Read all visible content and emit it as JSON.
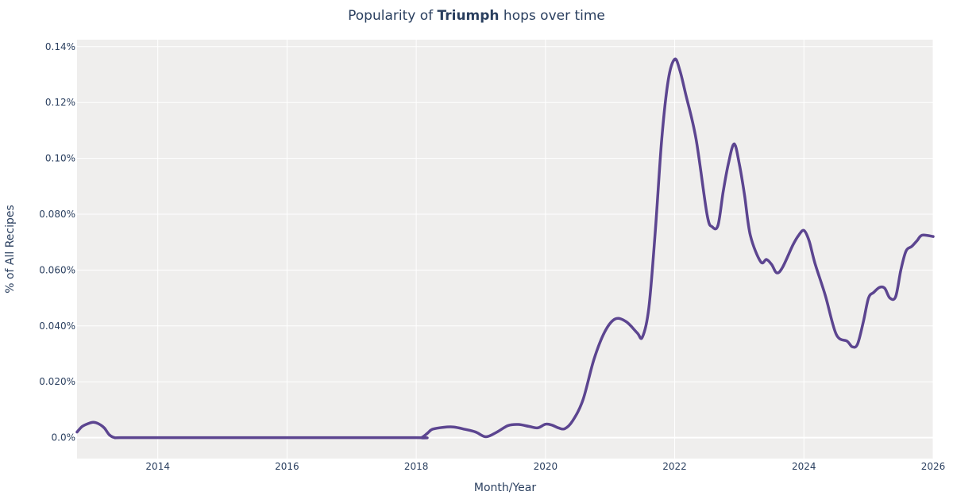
{
  "chart_data": {
    "type": "line",
    "title_prefix": "Popularity of ",
    "title_bold": "Triumph",
    "title_suffix": " hops over time",
    "xlabel": "Month/Year",
    "ylabel": "% of All Recipes",
    "xlim": [
      2012.75,
      2026.0
    ],
    "ylim": [
      -0.0075,
      0.1425
    ],
    "x_ticks": [
      2014,
      2016,
      2018,
      2020,
      2022,
      2024,
      2026
    ],
    "x_tick_labels": [
      "2014",
      "2016",
      "2018",
      "2020",
      "2022",
      "2024",
      "2026"
    ],
    "y_ticks": [
      0,
      0.02,
      0.04,
      0.06,
      0.08,
      0.1,
      0.12,
      0.14
    ],
    "y_tick_labels": [
      "0.0%",
      "0.020%",
      "0.040%",
      "0.060%",
      "0.080%",
      "0.10%",
      "0.12%",
      "0.14%"
    ],
    "grid": true,
    "series": [
      {
        "name": "Triumph",
        "color": "#5c4590",
        "points": [
          [
            2012.75,
            0.002
          ],
          [
            2012.83,
            0.004
          ],
          [
            2012.92,
            0.005
          ],
          [
            2013.0,
            0.0055
          ],
          [
            2013.08,
            0.005
          ],
          [
            2013.17,
            0.0035
          ],
          [
            2013.25,
            0.001
          ],
          [
            2013.33,
            0.0
          ],
          [
            2013.42,
            0.0
          ],
          [
            2014.0,
            0.0
          ],
          [
            2016.0,
            0.0
          ],
          [
            2018.0,
            0.0
          ],
          [
            2018.08,
            0.0
          ],
          [
            2018.17,
            0.0015
          ],
          [
            2018.25,
            0.003
          ],
          [
            2018.42,
            0.0037
          ],
          [
            2018.58,
            0.0038
          ],
          [
            2018.75,
            0.003
          ],
          [
            2018.92,
            0.002
          ],
          [
            2019.08,
            0.0003
          ],
          [
            2019.25,
            0.002
          ],
          [
            2019.42,
            0.0043
          ],
          [
            2019.58,
            0.0047
          ],
          [
            2019.75,
            0.004
          ],
          [
            2019.88,
            0.0035
          ],
          [
            2020.0,
            0.0048
          ],
          [
            2020.1,
            0.0045
          ],
          [
            2020.2,
            0.0035
          ],
          [
            2020.3,
            0.0032
          ],
          [
            2020.42,
            0.006
          ],
          [
            2020.58,
            0.0135
          ],
          [
            2020.75,
            0.028
          ],
          [
            2020.92,
            0.038
          ],
          [
            2021.08,
            0.0425
          ],
          [
            2021.25,
            0.0415
          ],
          [
            2021.42,
            0.0375
          ],
          [
            2021.5,
            0.036
          ],
          [
            2021.6,
            0.0465
          ],
          [
            2021.7,
            0.074
          ],
          [
            2021.8,
            0.107
          ],
          [
            2021.9,
            0.128
          ],
          [
            2022.0,
            0.1355
          ],
          [
            2022.08,
            0.1315
          ],
          [
            2022.17,
            0.123
          ],
          [
            2022.33,
            0.107
          ],
          [
            2022.5,
            0.08
          ],
          [
            2022.58,
            0.0755
          ],
          [
            2022.67,
            0.076
          ],
          [
            2022.75,
            0.088
          ],
          [
            2022.83,
            0.098
          ],
          [
            2022.92,
            0.1052
          ],
          [
            2023.0,
            0.098
          ],
          [
            2023.08,
            0.087
          ],
          [
            2023.17,
            0.0725
          ],
          [
            2023.33,
            0.063
          ],
          [
            2023.42,
            0.0638
          ],
          [
            2023.5,
            0.062
          ],
          [
            2023.58,
            0.059
          ],
          [
            2023.67,
            0.061
          ],
          [
            2023.83,
            0.069
          ],
          [
            2023.92,
            0.0725
          ],
          [
            2024.0,
            0.0742
          ],
          [
            2024.08,
            0.0705
          ],
          [
            2024.17,
            0.0625
          ],
          [
            2024.33,
            0.051
          ],
          [
            2024.5,
            0.037
          ],
          [
            2024.67,
            0.0345
          ],
          [
            2024.75,
            0.0325
          ],
          [
            2024.83,
            0.0335
          ],
          [
            2024.92,
            0.0415
          ],
          [
            2025.0,
            0.05
          ],
          [
            2025.08,
            0.052
          ],
          [
            2025.17,
            0.0538
          ],
          [
            2025.25,
            0.0535
          ],
          [
            2025.33,
            0.05
          ],
          [
            2025.42,
            0.0505
          ],
          [
            2025.5,
            0.06
          ],
          [
            2025.58,
            0.0668
          ],
          [
            2025.67,
            0.0685
          ],
          [
            2025.75,
            0.0705
          ],
          [
            2025.83,
            0.0725
          ],
          [
            2026.0,
            0.072
          ]
        ]
      }
    ]
  }
}
